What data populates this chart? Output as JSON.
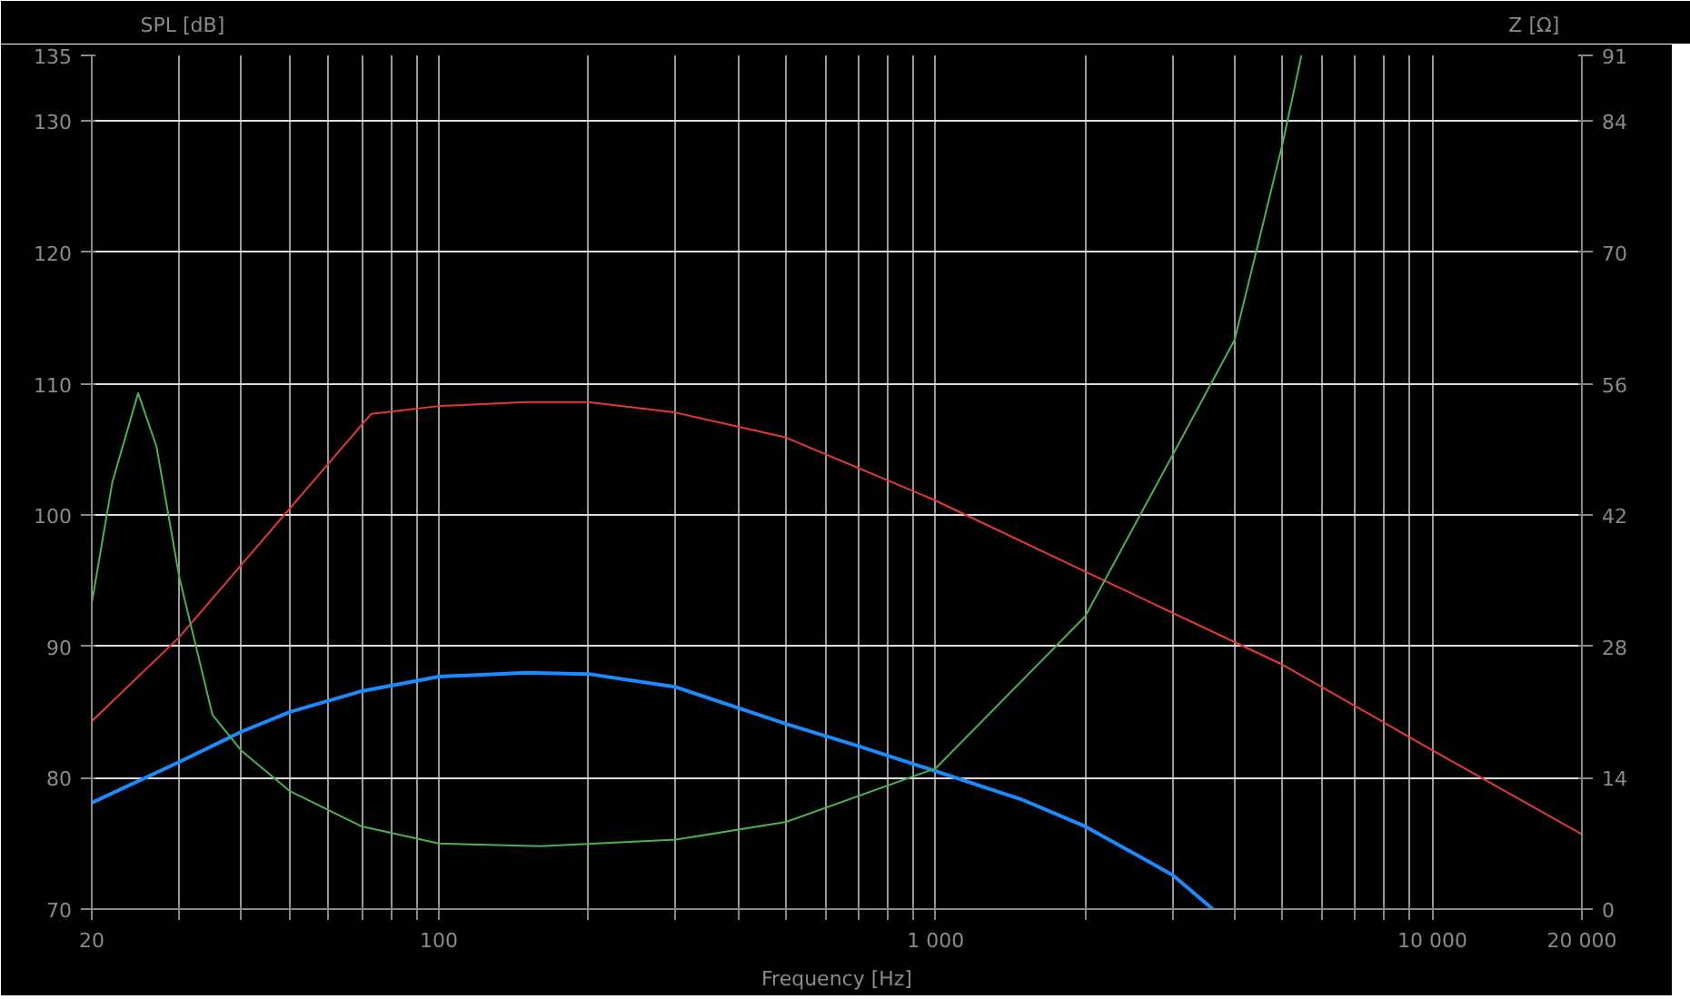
{
  "chart_data": {
    "type": "line",
    "xlabel": "Frequency [Hz]",
    "ylabel": "SPL [dB]",
    "y2label": "Z [Ω]",
    "log": "x",
    "xlim": [
      20,
      20000
    ],
    "xticks": [
      20,
      {
        "value": 30,
        "label": null
      },
      {
        "value": 40,
        "label": null
      },
      {
        "value": 50,
        "label": null
      },
      {
        "value": 60,
        "label": null
      },
      {
        "value": 70,
        "label": null
      },
      {
        "value": 80,
        "label": null
      },
      {
        "value": 90,
        "label": null
      },
      100,
      {
        "value": 200,
        "label": null
      },
      {
        "value": 300,
        "label": null
      },
      {
        "value": 400,
        "label": null
      },
      {
        "value": 500,
        "label": null
      },
      {
        "value": 600,
        "label": null
      },
      {
        "value": 700,
        "label": null
      },
      {
        "value": 800,
        "label": null
      },
      {
        "value": 900,
        "label": null
      },
      {
        "value": 1000,
        "label": "1 000"
      },
      {
        "value": 2000,
        "label": null
      },
      {
        "value": 3000,
        "label": null
      },
      {
        "value": 4000,
        "label": null
      },
      {
        "value": 5000,
        "label": null
      },
      {
        "value": 6000,
        "label": null
      },
      {
        "value": 7000,
        "label": null
      },
      {
        "value": 8000,
        "label": null
      },
      {
        "value": 9000,
        "label": null
      },
      {
        "value": 10000,
        "label": "10 000"
      },
      {
        "value": 20000,
        "label": "20 000"
      }
    ],
    "ylim": [
      70,
      135
    ],
    "yticks": [
      70,
      80,
      90,
      100,
      110,
      120,
      130,
      135
    ],
    "y2lim": [
      0,
      91
    ],
    "y2ticks": [
      0,
      14,
      28,
      42,
      56,
      70,
      84,
      91
    ],
    "grid": true,
    "series": [
      {
        "color": "#1a8cff",
        "x": [
          20,
          30,
          40,
          50,
          70,
          100,
          150,
          200,
          300,
          500,
          700,
          1000,
          1500,
          2000,
          3000,
          3614
        ],
        "values": [
          78.1,
          81.2,
          83.5,
          85.0,
          86.6,
          87.7,
          88.0,
          87.9,
          86.9,
          84.1,
          82.4,
          80.5,
          78.3,
          76.3,
          72.6,
          70
        ]
      },
      {
        "color": "#e53935",
        "x": [
          20,
          30,
          73,
          100,
          150,
          200,
          300,
          500,
          1000,
          2000,
          5000,
          10000,
          20000
        ],
        "values": [
          84.3,
          90.7,
          107.7,
          108.3,
          108.6,
          108.6,
          107.8,
          105.9,
          101.1,
          95.7,
          88.6,
          82.1,
          75.7
        ]
      },
      {
        "color": "#4caf50",
        "axis": "y2",
        "x": [
          20,
          22,
          24.8,
          27,
          30,
          35,
          40,
          50,
          70,
          100,
          160,
          300,
          500,
          1000,
          2000,
          3000,
          4000,
          5000,
          5450
        ],
        "values": [
          32.6,
          45.5,
          55.0,
          49.3,
          35.4,
          20.7,
          16.9,
          12.6,
          8.8,
          7.0,
          6.7,
          7.4,
          9.3,
          15.0,
          31.2,
          48.4,
          60.7,
          81.7,
          91
        ]
      }
    ]
  }
}
